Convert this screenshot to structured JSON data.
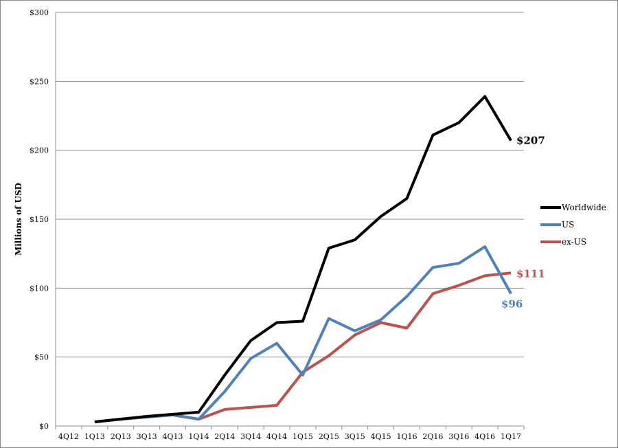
{
  "chart_data": {
    "type": "line",
    "title": "",
    "xlabel": "",
    "ylabel": "Millions of USD",
    "ylim": [
      0,
      300
    ],
    "yticks": [
      0,
      50,
      100,
      150,
      200,
      250,
      300
    ],
    "ytick_labels": [
      "$0",
      "$50",
      "$100",
      "$150",
      "$200",
      "$250",
      "$300"
    ],
    "grid": "horizontal",
    "legend_position": "right",
    "categories": [
      "4Q12",
      "1Q13",
      "2Q13",
      "3Q13",
      "4Q13",
      "1Q14",
      "2Q14",
      "3Q14",
      "4Q14",
      "1Q15",
      "2Q15",
      "3Q15",
      "4Q15",
      "1Q16",
      "2Q16",
      "3Q16",
      "4Q16",
      "1Q17"
    ],
    "series": [
      {
        "name": "Worldwide",
        "color": "#000000",
        "values": [
          null,
          3,
          5,
          7,
          8.5,
          10,
          37,
          62,
          75,
          76,
          129,
          135,
          152,
          165,
          211,
          220,
          239,
          207
        ],
        "end_label": "$207"
      },
      {
        "name": "US",
        "color": "#4f81bd",
        "values": [
          null,
          3,
          5,
          6.5,
          8,
          5,
          25,
          49,
          60,
          37,
          78,
          69,
          77,
          94,
          115,
          118,
          130,
          96
        ],
        "end_label": "$96"
      },
      {
        "name": "ex-US",
        "color": "#c0504d",
        "values": [
          null,
          3,
          5,
          6.5,
          8,
          5,
          12,
          13.5,
          15,
          39,
          51,
          66,
          75,
          71,
          96,
          102,
          109,
          111
        ],
        "end_label": "$111"
      }
    ]
  }
}
